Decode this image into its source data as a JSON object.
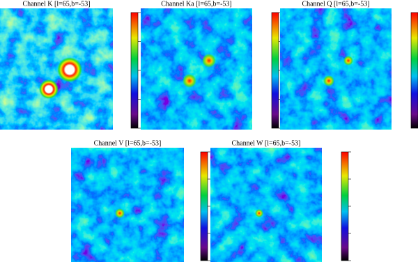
{
  "panels": [
    {
      "title": "Channel K [l=65,b=-53]"
    },
    {
      "title": "Channel Ka [l=65,b=-53]"
    },
    {
      "title": "Channel Q [l=65,b=-53]"
    },
    {
      "title": "Channel V [l=65,b=-53]"
    },
    {
      "title": "Channel W [l=65,b=-53]"
    }
  ]
}
